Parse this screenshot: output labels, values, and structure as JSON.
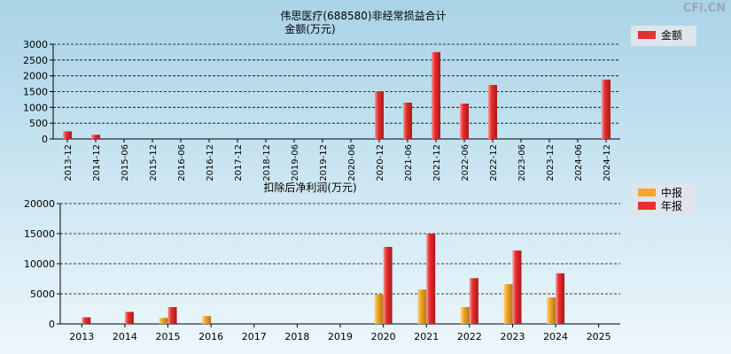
{
  "watermark": "CFi.CN",
  "colors": {
    "red": "#e8302f",
    "orange": "#f2a72a",
    "grid": "#000000",
    "legend_bg": "#dde3ea"
  },
  "chart_data": [
    {
      "type": "bar",
      "title": "伟思医疗(688580)非经常损益合计",
      "subtitle": "金额(万元)",
      "categories": [
        "2013-12",
        "2014-12",
        "2015-06",
        "2015-12",
        "2016-06",
        "2016-12",
        "2017-12",
        "2018-12",
        "2019-06",
        "2019-12",
        "2020-06",
        "2020-12",
        "2021-06",
        "2021-12",
        "2022-06",
        "2022-12",
        "2023-06",
        "2023-12",
        "2024-06",
        "2024-12"
      ],
      "series": [
        {
          "name": "金额",
          "color": "red",
          "values": [
            240,
            130,
            0,
            0,
            0,
            0,
            0,
            0,
            0,
            0,
            0,
            1510,
            1150,
            2750,
            1120,
            1710,
            0,
            0,
            0,
            1880
          ]
        }
      ],
      "ylim": [
        0,
        3000
      ],
      "yticks": [
        0,
        500,
        1000,
        1500,
        2000,
        2500,
        3000
      ],
      "legend": "top-right",
      "grid": true
    },
    {
      "type": "bar",
      "title": "扣除后净利润(万元)",
      "categories": [
        "2013",
        "2014",
        "2015",
        "2016",
        "2017",
        "2018",
        "2019",
        "2020",
        "2021",
        "2022",
        "2023",
        "2024",
        "2025"
      ],
      "series": [
        {
          "name": "中报",
          "color": "orange",
          "values": [
            null,
            null,
            1000,
            1300,
            null,
            null,
            null,
            4900,
            5700,
            2800,
            6600,
            4400,
            null
          ]
        },
        {
          "name": "年报",
          "color": "red",
          "values": [
            1100,
            2000,
            2800,
            null,
            null,
            null,
            null,
            12800,
            15000,
            7600,
            12200,
            8400,
            null
          ]
        }
      ],
      "ylim": [
        0,
        20000
      ],
      "yticks": [
        0,
        5000,
        10000,
        15000,
        20000
      ],
      "legend": "top-right",
      "grid": true
    }
  ]
}
